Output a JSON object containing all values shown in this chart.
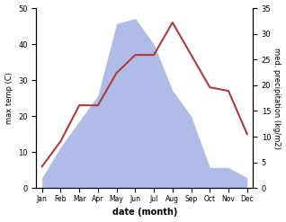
{
  "months": [
    "Jan",
    "Feb",
    "Mar",
    "Apr",
    "May",
    "Jun",
    "Jul",
    "Aug",
    "Sep",
    "Oct",
    "Nov",
    "Dec"
  ],
  "temperature": [
    6,
    13,
    23,
    23,
    32,
    37,
    37,
    46,
    37,
    28,
    27,
    15
  ],
  "precipitation_kg": [
    2,
    8,
    13,
    18,
    32,
    33,
    28,
    19,
    14,
    4,
    4,
    2
  ],
  "temp_color": "#b03a3a",
  "precip_color": "#b0bce8",
  "ylim_temp": [
    0,
    50
  ],
  "ylim_precip": [
    0,
    35
  ],
  "yticks_temp": [
    0,
    10,
    20,
    30,
    40,
    50
  ],
  "yticks_precip": [
    0,
    5,
    10,
    15,
    20,
    25,
    30,
    35
  ],
  "xlabel": "date (month)",
  "ylabel_left": "max temp (C)",
  "ylabel_right": "med. precipitation (kg/m2)",
  "background_color": "#ffffff"
}
